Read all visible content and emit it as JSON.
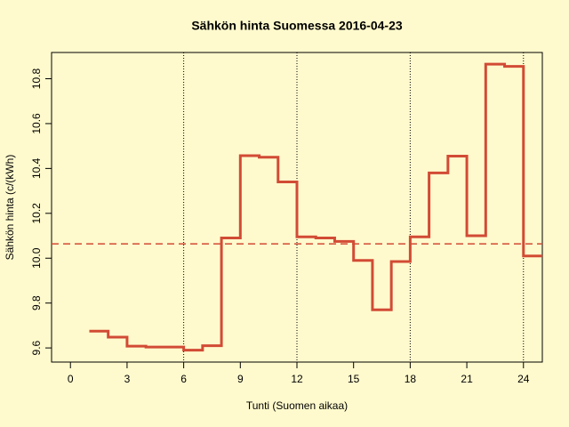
{
  "chart_data": {
    "type": "line",
    "step": true,
    "title": "Sähkön hinta Suomessa 2016-04-23",
    "x_label": "Tunti (Suomen aikaa)",
    "y_label": "Sähkön hinta (c/(kWh)",
    "x": [
      1,
      2,
      3,
      4,
      5,
      6,
      7,
      8,
      9,
      10,
      11,
      12,
      13,
      14,
      15,
      16,
      17,
      18,
      19,
      20,
      21,
      22,
      23,
      24,
      25
    ],
    "series": [
      {
        "color": "#d24b35",
        "values": [
          9.675,
          9.648,
          9.608,
          9.604,
          9.604,
          9.59,
          9.61,
          10.09,
          10.457,
          10.45,
          10.34,
          10.095,
          10.09,
          10.075,
          9.99,
          9.77,
          9.985,
          10.095,
          10.38,
          10.455,
          10.1,
          10.865,
          10.855,
          10.01,
          10.01
        ]
      }
    ],
    "mean_line": 10.064,
    "vlines": [
      6,
      12,
      18,
      24
    ],
    "xlim": [
      -1,
      25
    ],
    "ylim": [
      9.537,
      10.917
    ],
    "xticks": [
      0,
      3,
      6,
      9,
      12,
      15,
      18,
      21,
      24
    ],
    "yticks": [
      9.6,
      9.8,
      {
        "value": 10,
        "label": "10.0"
      },
      10.2,
      10.4,
      10.6,
      10.8
    ]
  }
}
